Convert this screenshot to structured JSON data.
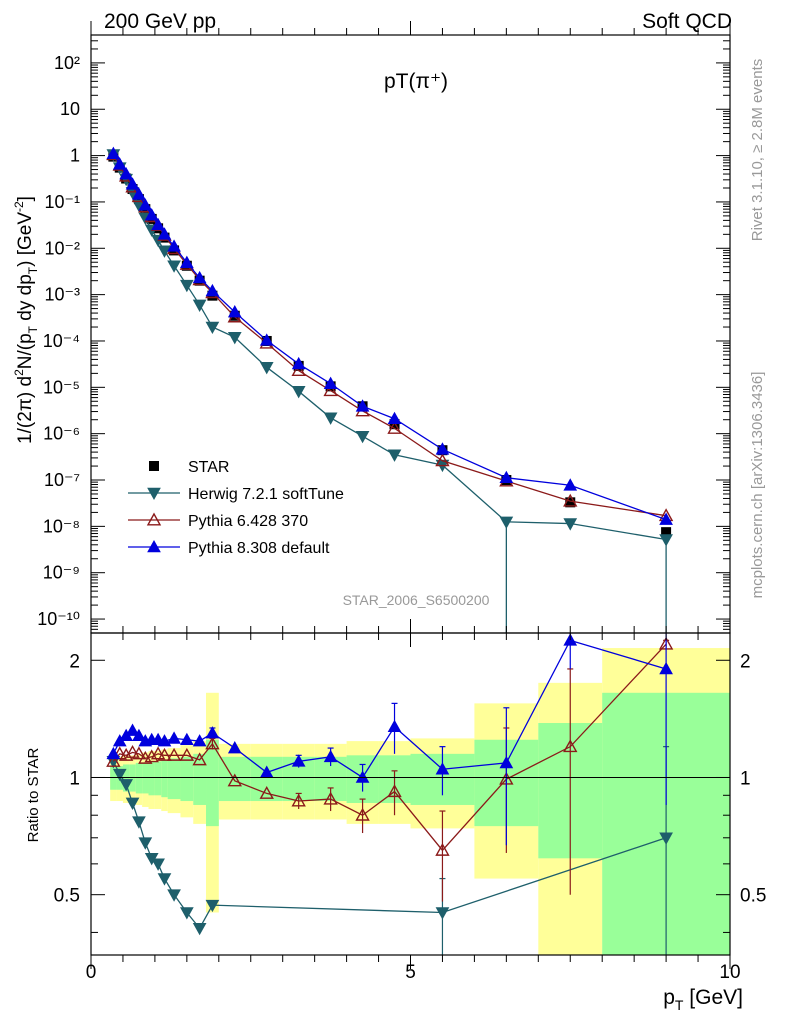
{
  "header": {
    "left": "200 GeV pp",
    "right": "Soft QCD"
  },
  "side_labels": {
    "rivet": "Rivet 3.1.10, ≥ 2.8M events",
    "mcplots": "mcplots.cern.ch [arXiv:1306.3436]"
  },
  "chart_data": [
    {
      "type": "scatter",
      "title": "pT(π⁺)",
      "watermark": "STAR_2006_S6500200",
      "ylabel": "1/(2π) d²N/(p_T dy dp_T) [GeV⁻²]",
      "xlim": [
        0,
        10
      ],
      "ylim": [
        5e-11,
        400
      ],
      "y_scale": "log",
      "y_tick_labels": [
        "10²",
        "10",
        "1",
        "10⁻¹",
        "10⁻²",
        "10⁻³",
        "10⁻⁴",
        "10⁻⁵",
        "10⁻⁶",
        "10⁻⁷",
        "10⁻⁸",
        "10⁻⁹",
        "10⁻¹⁰"
      ],
      "legend_position": "bottom-left",
      "series": [
        {
          "name": "STAR",
          "color": "#000000",
          "marker": "square",
          "x": [
            0.35,
            0.45,
            0.55,
            0.65,
            0.75,
            0.85,
            0.95,
            1.05,
            1.15,
            1.3,
            1.5,
            1.7,
            1.9,
            2.25,
            2.75,
            3.25,
            3.75,
            4.25,
            4.75,
            5.5,
            6.5,
            7.5,
            9.0
          ],
          "y": [
            0.95,
            0.55,
            0.32,
            0.19,
            0.115,
            0.07,
            0.043,
            0.027,
            0.017,
            0.009,
            0.0042,
            0.002,
            0.00095,
            0.00035,
            0.0001,
            2.9e-05,
            1.05e-05,
            3.9e-06,
            1.6e-06,
            4.4e-07,
            1e-07,
            3.3e-08,
            7.5e-09
          ]
        },
        {
          "name": "Herwig 7.2.1 softTune",
          "color": "#1e5f6b",
          "marker": "triangle-down",
          "x": [
            0.35,
            0.45,
            0.55,
            0.65,
            0.75,
            0.85,
            0.95,
            1.05,
            1.15,
            1.3,
            1.5,
            1.7,
            1.9,
            2.25,
            2.75,
            3.25,
            3.75,
            4.25,
            4.75,
            5.5,
            6.5,
            7.5,
            9.0
          ],
          "y": [
            1.05,
            0.55,
            0.31,
            0.16,
            0.085,
            0.045,
            0.025,
            0.015,
            0.0088,
            0.0042,
            0.0016,
            0.0006,
            0.0002,
            0.00012,
            2.7e-05,
            8.2e-06,
            2.2e-06,
            8.8e-07,
            3.5e-07,
            2.1e-07,
            1.25e-08,
            1.15e-08,
            5.2e-09
          ]
        },
        {
          "name": "Pythia 6.428 370",
          "color": "#8b1a1a",
          "marker": "triangle-up-open",
          "x": [
            0.35,
            0.45,
            0.55,
            0.65,
            0.75,
            0.85,
            0.95,
            1.05,
            1.15,
            1.3,
            1.5,
            1.7,
            1.9,
            2.25,
            2.75,
            3.25,
            3.75,
            4.25,
            4.75,
            5.5,
            6.5,
            7.5,
            9.0
          ],
          "y": [
            1.05,
            0.62,
            0.36,
            0.21,
            0.13,
            0.078,
            0.048,
            0.031,
            0.019,
            0.0098,
            0.0045,
            0.0021,
            0.0011,
            0.00033,
            9e-05,
            2.3e-05,
            8.5e-06,
            3.1e-06,
            1.3e-06,
            2.6e-07,
            9.5e-08,
            3.5e-08,
            1.7e-08
          ]
        },
        {
          "name": "Pythia 8.308 default",
          "color": "#0000dd",
          "marker": "triangle-up",
          "x": [
            0.35,
            0.45,
            0.55,
            0.65,
            0.75,
            0.85,
            0.95,
            1.05,
            1.15,
            1.3,
            1.5,
            1.7,
            1.9,
            2.25,
            2.75,
            3.25,
            3.75,
            4.25,
            4.75,
            5.5,
            6.5,
            7.5,
            9.0
          ],
          "y": [
            1.1,
            0.65,
            0.4,
            0.24,
            0.145,
            0.085,
            0.052,
            0.032,
            0.02,
            0.011,
            0.0049,
            0.0023,
            0.0012,
            0.00042,
            0.000103,
            3.2e-05,
            1.2e-05,
            3.9e-06,
            2.1e-06,
            4.6e-07,
            1.12e-07,
            7.7e-08,
            1.4e-08
          ]
        }
      ]
    },
    {
      "type": "scatter",
      "ylabel": "Ratio to STAR",
      "xlabel": "p_T [GeV]",
      "xlim": [
        0,
        10
      ],
      "ylim": [
        0.35,
        2.35
      ],
      "x_tick_labels": [
        "0",
        "5",
        "10"
      ],
      "y_tick_labels": [
        "0.5",
        "1",
        "2"
      ],
      "reference_line": 1,
      "bands": {
        "x_edges": [
          0.3,
          0.4,
          0.5,
          0.6,
          0.7,
          0.8,
          0.9,
          1.0,
          1.1,
          1.2,
          1.4,
          1.6,
          1.8,
          2.0,
          2.5,
          3.0,
          3.5,
          4.0,
          4.5,
          5.0,
          6.0,
          7.0,
          8.0,
          10.0
        ],
        "inner_lo": [
          0.93,
          0.93,
          0.92,
          0.92,
          0.91,
          0.91,
          0.9,
          0.9,
          0.89,
          0.88,
          0.87,
          0.85,
          0.75,
          0.87,
          0.87,
          0.87,
          0.87,
          0.86,
          0.86,
          0.85,
          0.75,
          0.62,
          0.35
        ],
        "inner_hi": [
          1.07,
          1.07,
          1.08,
          1.08,
          1.09,
          1.09,
          1.1,
          1.1,
          1.11,
          1.12,
          1.13,
          1.15,
          1.25,
          1.13,
          1.13,
          1.13,
          1.13,
          1.14,
          1.14,
          1.15,
          1.25,
          1.38,
          1.65
        ],
        "outer_lo": [
          0.87,
          0.87,
          0.86,
          0.86,
          0.85,
          0.84,
          0.83,
          0.83,
          0.82,
          0.81,
          0.79,
          0.76,
          0.45,
          0.78,
          0.78,
          0.78,
          0.78,
          0.76,
          0.76,
          0.74,
          0.55,
          0.35,
          0.35
        ],
        "outer_hi": [
          1.13,
          1.13,
          1.14,
          1.14,
          1.15,
          1.16,
          1.17,
          1.17,
          1.18,
          1.19,
          1.21,
          1.24,
          1.65,
          1.22,
          1.22,
          1.22,
          1.22,
          1.24,
          1.24,
          1.26,
          1.55,
          1.75,
          2.15
        ],
        "inner_color": "#99ff99",
        "outer_color": "#ffff99"
      },
      "series": [
        {
          "name": "Herwig 7.2.1 softTune",
          "color": "#1e5f6b",
          "marker": "triangle-down",
          "x": [
            0.35,
            0.45,
            0.55,
            0.65,
            0.75,
            0.85,
            0.95,
            1.05,
            1.15,
            1.3,
            1.5,
            1.7,
            1.9,
            5.5,
            9.0
          ],
          "y": [
            1.1,
            1.02,
            0.96,
            0.86,
            0.77,
            0.68,
            0.62,
            0.6,
            0.55,
            0.5,
            0.45,
            0.41,
            0.47,
            0.45,
            0.7
          ],
          "err": [
            0,
            0,
            0,
            0,
            0,
            0,
            0,
            0,
            0,
            0,
            0,
            0,
            0,
            0.1,
            0.5
          ]
        },
        {
          "name": "Pythia 6.428 370",
          "color": "#8b1a1a",
          "marker": "triangle-up-open",
          "x": [
            0.35,
            0.45,
            0.55,
            0.65,
            0.75,
            0.85,
            0.95,
            1.05,
            1.15,
            1.3,
            1.5,
            1.7,
            1.9,
            2.25,
            2.75,
            3.25,
            3.75,
            4.25,
            4.75,
            5.5,
            6.5,
            7.5,
            9.0
          ],
          "y": [
            1.1,
            1.15,
            1.14,
            1.16,
            1.15,
            1.12,
            1.13,
            1.15,
            1.14,
            1.14,
            1.14,
            1.11,
            1.22,
            0.98,
            0.91,
            0.87,
            0.88,
            0.8,
            0.92,
            0.65,
            0.99,
            1.2,
            2.2
          ],
          "err": [
            0.02,
            0.02,
            0.02,
            0.02,
            0.02,
            0.02,
            0.02,
            0.02,
            0.02,
            0.02,
            0.03,
            0.03,
            0.04,
            0.03,
            0.03,
            0.04,
            0.06,
            0.08,
            0.12,
            0.17,
            0.35,
            0.7,
            0.05
          ]
        },
        {
          "name": "Pythia 8.308 default",
          "color": "#0000dd",
          "marker": "triangle-up",
          "x": [
            0.35,
            0.45,
            0.55,
            0.65,
            0.75,
            0.85,
            0.95,
            1.05,
            1.15,
            1.3,
            1.5,
            1.7,
            1.9,
            2.25,
            2.75,
            3.25,
            3.75,
            4.25,
            4.75,
            5.5,
            6.5,
            7.5,
            9.0
          ],
          "y": [
            1.15,
            1.24,
            1.28,
            1.32,
            1.28,
            1.24,
            1.25,
            1.25,
            1.24,
            1.26,
            1.25,
            1.24,
            1.3,
            1.19,
            1.03,
            1.1,
            1.13,
            1.0,
            1.35,
            1.05,
            1.09,
            2.25,
            1.9
          ],
          "err": [
            0.02,
            0.02,
            0.02,
            0.02,
            0.02,
            0.02,
            0.02,
            0.02,
            0.02,
            0.02,
            0.03,
            0.03,
            0.04,
            0.02,
            0.02,
            0.04,
            0.06,
            0.08,
            0.2,
            0.15,
            0.42,
            0.35,
            1.05
          ]
        }
      ]
    }
  ]
}
